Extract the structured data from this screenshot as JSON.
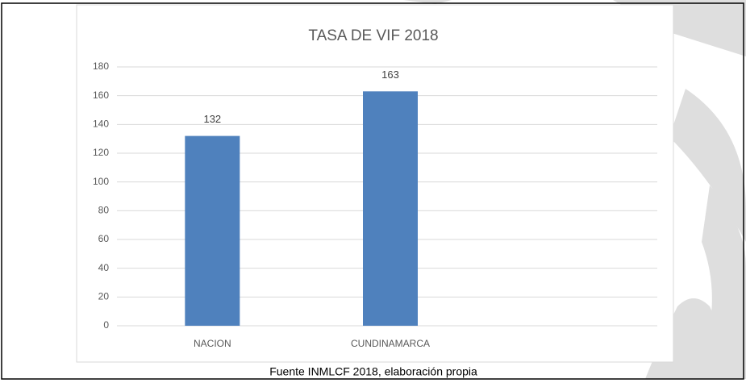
{
  "chart_data": {
    "type": "bar",
    "title": "TASA DE VIF 2018",
    "categories": [
      "NACION",
      "CUNDINAMARCA",
      null
    ],
    "values": [
      132,
      163,
      null
    ],
    "color": "#4f81bd",
    "ylim": [
      0,
      180
    ],
    "yticks": [
      0,
      20,
      40,
      60,
      80,
      100,
      120,
      140,
      160,
      180
    ],
    "grid": true
  },
  "caption": "Fuente INMLCF 2018, elaboración propia"
}
